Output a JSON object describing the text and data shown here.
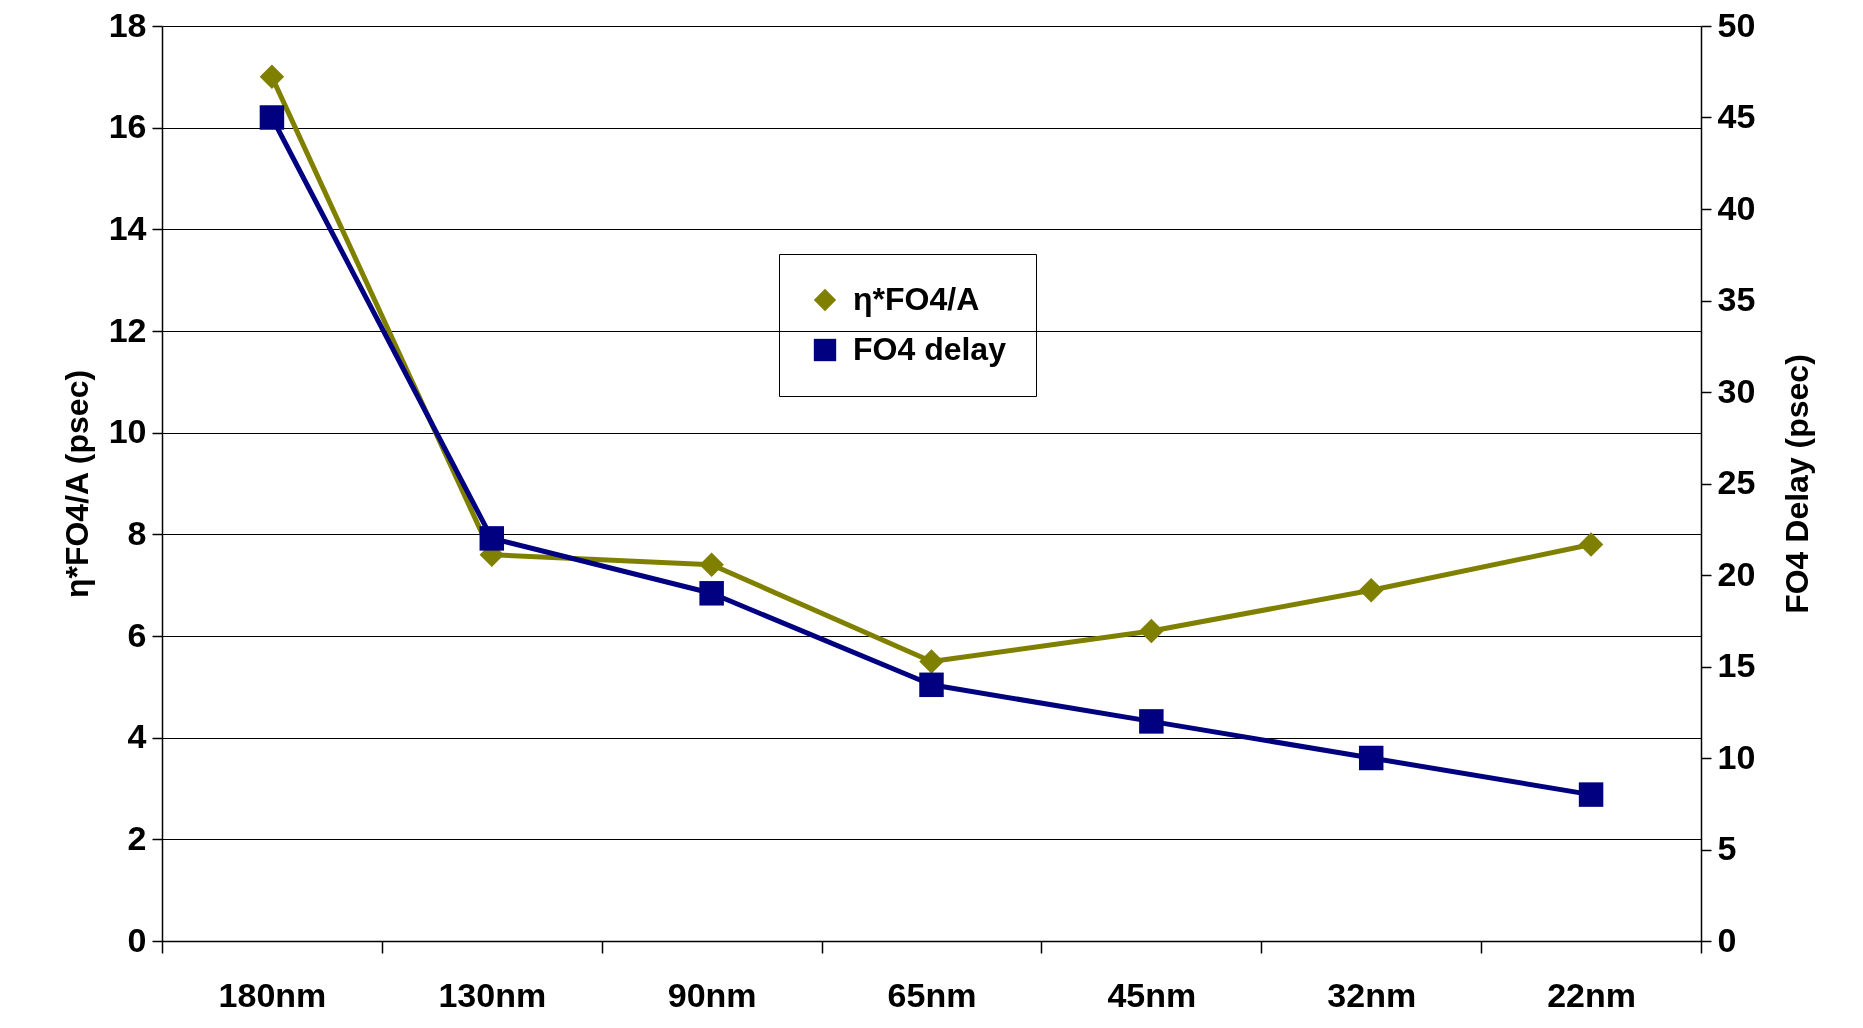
{
  "chart_data": {
    "type": "line",
    "categories": [
      "180nm",
      "130nm",
      "90nm",
      "65nm",
      "45nm",
      "32nm",
      "22nm"
    ],
    "series": [
      {
        "name": "η*FO4/A",
        "color": "#808000",
        "marker": "diamond",
        "values": [
          17.0,
          7.6,
          7.4,
          5.5,
          6.1,
          6.9,
          7.8
        ]
      },
      {
        "name": "FO4 delay",
        "color": "#000080",
        "marker": "square",
        "axis": "y2",
        "values": [
          45,
          22,
          19,
          14,
          12,
          10,
          8
        ]
      }
    ],
    "ylabel": "η*FO4/A (psec)",
    "y2label": "FO4 Delay (psec)",
    "ylim": [
      0,
      18
    ],
    "yticks": [
      0,
      2,
      4,
      6,
      8,
      10,
      12,
      14,
      16,
      18
    ],
    "y2lim": [
      0,
      50
    ],
    "y2ticks": [
      0,
      5,
      10,
      15,
      20,
      25,
      30,
      35,
      40,
      45,
      50
    ],
    "grid": "y",
    "legend": "top"
  }
}
